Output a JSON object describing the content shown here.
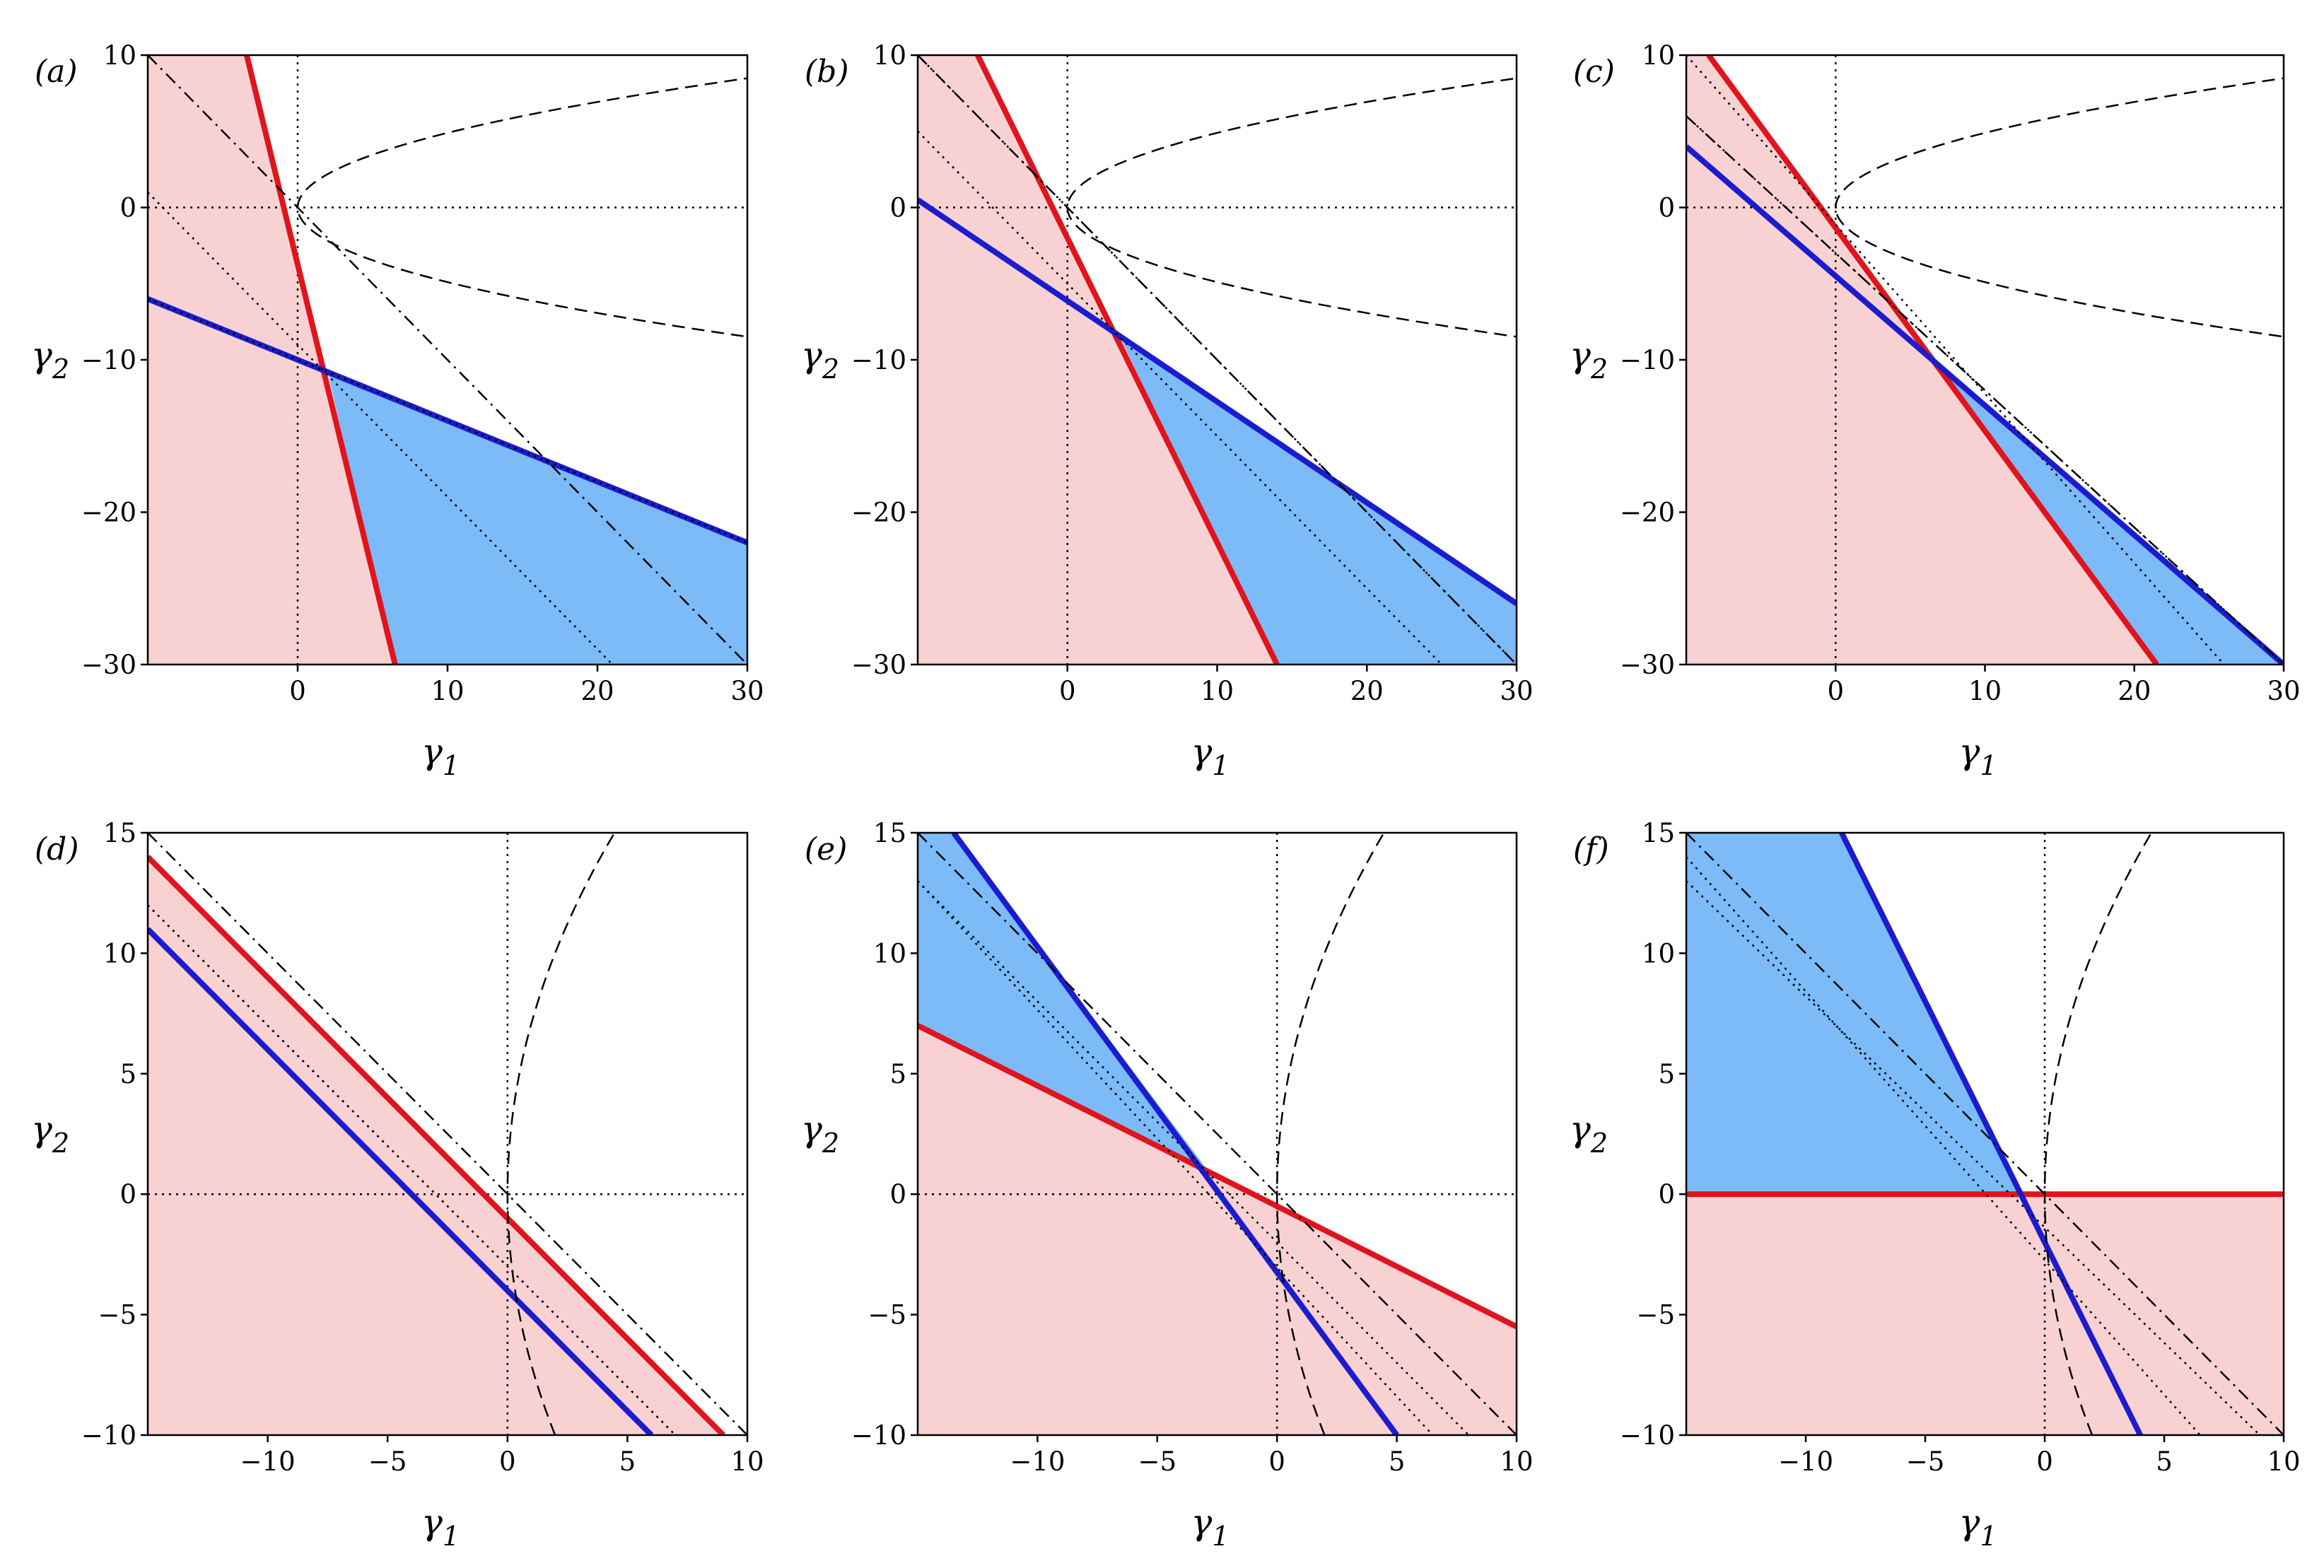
{
  "colors": {
    "red_line": "#e0141c",
    "blue_line": "#1c1ccf",
    "red_region": "#f8d2d2",
    "blue_region": "#7cbaf8",
    "black": "#000000"
  },
  "axis_labels": {
    "x": "γ",
    "x_sub": "1",
    "y": "γ",
    "y_sub": "2"
  },
  "chart_data": [
    {
      "panel": "(a)",
      "type": "line",
      "xlabel": "γ1",
      "ylabel": "γ2",
      "xlim": [
        -10,
        30
      ],
      "ylim": [
        -30,
        10
      ],
      "xticks": [
        0,
        10,
        20,
        30
      ],
      "yticks": [
        -30,
        -20,
        -10,
        0,
        10
      ],
      "series": [
        {
          "name": "red line",
          "points": [
            [
              -3.4,
              10
            ],
            [
              6.5,
              -30
            ]
          ]
        },
        {
          "name": "blue line",
          "points": [
            [
              -10,
              -6
            ],
            [
              30,
              -22
            ]
          ]
        },
        {
          "name": "parabola (dashed)",
          "x_vertex": 0,
          "y_vertex": 0,
          "k": 0.6
        },
        {
          "name": "tangent (dash-dot)",
          "points": [
            [
              -10,
              10
            ],
            [
              30,
              -30
            ]
          ]
        },
        {
          "name": "dotted line 1",
          "points": [
            [
              -10,
              1
            ],
            [
              21,
              -30
            ]
          ]
        },
        {
          "name": "dotted line 2",
          "points": [
            [
              -10,
              -6
            ],
            [
              30,
              -22
            ]
          ]
        }
      ],
      "regions": [
        {
          "name": "red region",
          "polygon": [
            [
              -10,
              10
            ],
            [
              -3.4,
              10
            ],
            [
              6.5,
              -30
            ],
            [
              -10,
              -30
            ]
          ]
        },
        {
          "name": "blue region",
          "polygon": [
            [
              2,
              -10.8
            ],
            [
              30,
              -22
            ],
            [
              30,
              -30
            ],
            [
              6.5,
              -30
            ]
          ]
        }
      ]
    },
    {
      "panel": "(b)",
      "type": "line",
      "xlabel": "γ1",
      "ylabel": "γ2",
      "xlim": [
        -10,
        30
      ],
      "ylim": [
        -30,
        10
      ],
      "xticks": [
        0,
        10,
        20,
        30
      ],
      "yticks": [
        -30,
        -20,
        -10,
        0,
        10
      ],
      "series": [
        {
          "name": "red line",
          "points": [
            [
              -6,
              10
            ],
            [
              14,
              -30
            ]
          ]
        },
        {
          "name": "blue line",
          "points": [
            [
              -10,
              0.5
            ],
            [
              30,
              -26
            ]
          ]
        },
        {
          "name": "parabola (dashed)",
          "x_vertex": 0,
          "y_vertex": 0,
          "k": 0.6
        },
        {
          "name": "tangent (dash-dot)",
          "points": [
            [
              -10,
              10
            ],
            [
              30,
              -30
            ]
          ]
        },
        {
          "name": "dotted line 1",
          "points": [
            [
              -10,
              5
            ],
            [
              25,
              -30
            ]
          ]
        },
        {
          "name": "dotted line 2",
          "points": [
            [
              -10,
              10
            ],
            [
              30,
              -30
            ]
          ]
        }
      ],
      "regions": [
        {
          "name": "red region",
          "polygon": [
            [
              -10,
              10
            ],
            [
              -6,
              10
            ],
            [
              14,
              -30
            ],
            [
              -10,
              -30
            ]
          ]
        },
        {
          "name": "blue region",
          "polygon": [
            [
              3.3,
              -8.1
            ],
            [
              30,
              -26
            ],
            [
              30,
              -30
            ],
            [
              14,
              -30
            ]
          ]
        }
      ]
    },
    {
      "panel": "(c)",
      "type": "line",
      "xlabel": "γ1",
      "ylabel": "γ2",
      "xlim": [
        -10,
        30
      ],
      "ylim": [
        -30,
        10
      ],
      "xticks": [
        0,
        10,
        20,
        30
      ],
      "yticks": [
        -30,
        -20,
        -10,
        0,
        10
      ],
      "series": [
        {
          "name": "red line",
          "points": [
            [
              -8.5,
              10
            ],
            [
              21.5,
              -30
            ]
          ]
        },
        {
          "name": "blue line",
          "points": [
            [
              -10,
              4
            ],
            [
              30,
              -30
            ]
          ]
        },
        {
          "name": "parabola (dashed)",
          "x_vertex": 0,
          "y_vertex": 0,
          "k": 0.6
        },
        {
          "name": "tangent (dash-dot)",
          "points": [
            [
              -10,
              6
            ],
            [
              30,
              -30
            ]
          ]
        },
        {
          "name": "dotted line 1",
          "points": [
            [
              -10,
              10
            ],
            [
              26,
              -30
            ]
          ]
        },
        {
          "name": "dotted line 2",
          "points": [
            [
              -10,
              6
            ],
            [
              30,
              -30
            ]
          ]
        }
      ],
      "regions": [
        {
          "name": "red region",
          "polygon": [
            [
              -10,
              10
            ],
            [
              -8.5,
              10
            ],
            [
              21.5,
              -30
            ],
            [
              -10,
              -30
            ]
          ]
        },
        {
          "name": "blue region",
          "polygon": [
            [
              7.3,
              -10.8
            ],
            [
              30,
              -30
            ],
            [
              21.5,
              -30
            ]
          ]
        }
      ]
    },
    {
      "panel": "(d)",
      "type": "line",
      "xlabel": "γ1",
      "ylabel": "γ2",
      "xlim": [
        -15,
        10
      ],
      "ylim": [
        -10,
        15
      ],
      "xticks": [
        -10,
        -5,
        0,
        5,
        10
      ],
      "yticks": [
        -10,
        -5,
        0,
        5,
        10,
        15
      ],
      "series": [
        {
          "name": "red line",
          "points": [
            [
              -15,
              14
            ],
            [
              9,
              -10
            ]
          ]
        },
        {
          "name": "blue line",
          "points": [
            [
              -15,
              11
            ],
            [
              6,
              -10
            ]
          ]
        },
        {
          "name": "parabola (dashed)",
          "x_vertex": 0,
          "y_vertex": 0,
          "k": 12.6
        },
        {
          "name": "tangent (dash-dot)",
          "points": [
            [
              -15,
              15
            ],
            [
              10,
              -10
            ]
          ]
        },
        {
          "name": "dotted line 1",
          "points": [
            [
              -15,
              12
            ],
            [
              7,
              -10
            ]
          ]
        },
        {
          "name": "dotted line 2",
          "points": [
            [
              -15,
              12
            ],
            [
              7,
              -10
            ]
          ]
        }
      ],
      "regions": [
        {
          "name": "red region",
          "polygon": [
            [
              -15,
              14
            ],
            [
              9,
              -10
            ],
            [
              -15,
              -10
            ]
          ]
        }
      ]
    },
    {
      "panel": "(e)",
      "type": "line",
      "xlabel": "γ1",
      "ylabel": "γ2",
      "xlim": [
        -15,
        10
      ],
      "ylim": [
        -10,
        15
      ],
      "xticks": [
        -10,
        -5,
        0,
        5,
        10
      ],
      "yticks": [
        -10,
        -5,
        0,
        5,
        10,
        15
      ],
      "series": [
        {
          "name": "red line",
          "points": [
            [
              -15,
              7
            ],
            [
              10,
              -5.5
            ]
          ]
        },
        {
          "name": "blue line",
          "points": [
            [
              -13.5,
              15
            ],
            [
              5,
              -10
            ]
          ]
        },
        {
          "name": "parabola (dashed)",
          "x_vertex": 0,
          "y_vertex": 0,
          "k": 12.6
        },
        {
          "name": "tangent (dash-dot)",
          "points": [
            [
              -15,
              15
            ],
            [
              10,
              -10
            ]
          ]
        },
        {
          "name": "dotted line 1",
          "points": [
            [
              -15,
              13
            ],
            [
              8,
              -10
            ]
          ]
        },
        {
          "name": "dotted line 2",
          "points": [
            [
              -15,
              13
            ],
            [
              6.5,
              -10
            ]
          ]
        }
      ],
      "regions": [
        {
          "name": "red region",
          "polygon": [
            [
              -15,
              7
            ],
            [
              10,
              -5.5
            ],
            [
              10,
              -10
            ],
            [
              -15,
              -10
            ]
          ]
        },
        {
          "name": "blue region",
          "polygon": [
            [
              -15,
              15
            ],
            [
              -13.5,
              15
            ],
            [
              -2.9,
              1
            ],
            [
              -15,
              7
            ]
          ]
        }
      ]
    },
    {
      "panel": "(f)",
      "type": "line",
      "xlabel": "γ1",
      "ylabel": "γ2",
      "xlim": [
        -15,
        10
      ],
      "ylim": [
        -10,
        15
      ],
      "xticks": [
        -10,
        -5,
        0,
        5,
        10
      ],
      "yticks": [
        -10,
        -5,
        0,
        5,
        10,
        15
      ],
      "series": [
        {
          "name": "red line",
          "points": [
            [
              -15,
              0
            ],
            [
              10,
              0
            ]
          ]
        },
        {
          "name": "blue line",
          "points": [
            [
              -8.5,
              15
            ],
            [
              4,
              -10
            ]
          ]
        },
        {
          "name": "parabola (dashed)",
          "x_vertex": 0,
          "y_vertex": 0,
          "k": 12.6
        },
        {
          "name": "tangent (dash-dot)",
          "points": [
            [
              -15,
              15
            ],
            [
              10,
              -10
            ]
          ]
        },
        {
          "name": "dotted line 1",
          "points": [
            [
              -15,
              13
            ],
            [
              9,
              -10
            ]
          ]
        },
        {
          "name": "dotted line 2",
          "points": [
            [
              -15,
              14
            ],
            [
              6.5,
              -10
            ]
          ]
        }
      ],
      "regions": [
        {
          "name": "red region",
          "polygon": [
            [
              -15,
              0
            ],
            [
              10,
              0
            ],
            [
              10,
              -10
            ],
            [
              -15,
              -10
            ]
          ]
        },
        {
          "name": "blue region",
          "polygon": [
            [
              -15,
              15
            ],
            [
              -8.5,
              15
            ],
            [
              -1,
              0
            ],
            [
              -15,
              0
            ]
          ]
        }
      ]
    }
  ]
}
